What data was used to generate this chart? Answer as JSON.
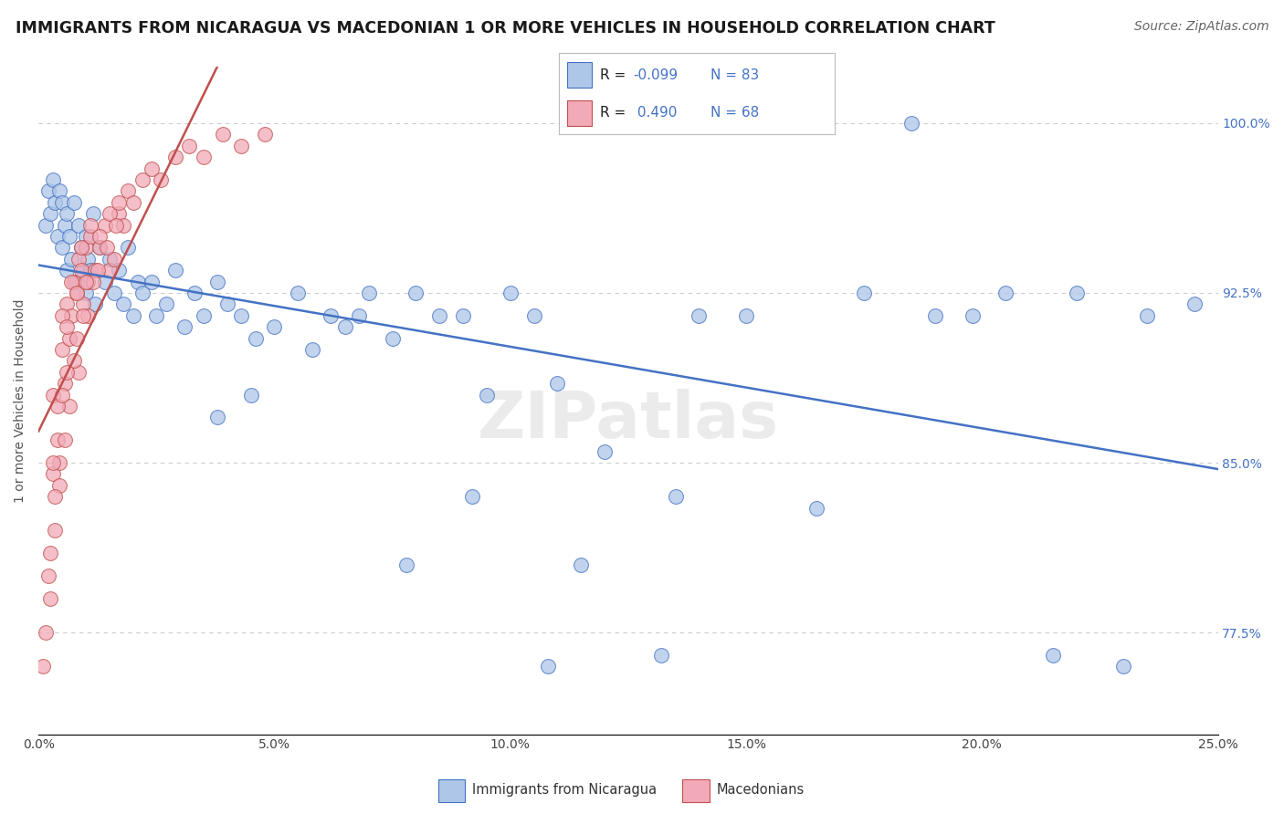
{
  "title": "IMMIGRANTS FROM NICARAGUA VS MACEDONIAN 1 OR MORE VEHICLES IN HOUSEHOLD CORRELATION CHART",
  "source": "Source: ZipAtlas.com",
  "ylabel": "1 or more Vehicles in Household",
  "legend_labels": [
    "Immigrants from Nicaragua",
    "Macedonians"
  ],
  "r_nicaragua": -0.099,
  "n_nicaragua": 83,
  "r_macedonian": 0.49,
  "n_macedonian": 68,
  "xlim": [
    0.0,
    25.0
  ],
  "ylim": [
    73.0,
    102.5
  ],
  "yticks": [
    77.5,
    85.0,
    92.5,
    100.0
  ],
  "xticks": [
    0.0,
    5.0,
    10.0,
    15.0,
    20.0,
    25.0
  ],
  "xtick_labels": [
    "0.0%",
    "5.0%",
    "10.0%",
    "15.0%",
    "20.0%",
    "25.0%"
  ],
  "ytick_labels": [
    "77.5%",
    "85.0%",
    "92.5%",
    "100.0%"
  ],
  "color_nicaragua": "#aec6e8",
  "color_macedonian": "#f2aab8",
  "line_color_nicaragua": "#4472c4",
  "line_color_macedonian": "#c0504d",
  "background_color": "#ffffff",
  "grid_color": "#cccccc",
  "title_fontsize": 12.5,
  "source_fontsize": 10,
  "axis_label_fontsize": 10,
  "tick_fontsize": 10,
  "nicaragua_x": [
    0.15,
    0.2,
    0.25,
    0.3,
    0.35,
    0.4,
    0.45,
    0.5,
    0.5,
    0.55,
    0.6,
    0.6,
    0.65,
    0.7,
    0.75,
    0.8,
    0.85,
    0.9,
    0.95,
    1.0,
    1.0,
    1.05,
    1.1,
    1.15,
    1.2,
    1.3,
    1.4,
    1.5,
    1.6,
    1.7,
    1.8,
    1.9,
    2.0,
    2.1,
    2.2,
    2.4,
    2.5,
    2.7,
    2.9,
    3.1,
    3.3,
    3.5,
    3.8,
    4.0,
    4.3,
    4.6,
    5.0,
    5.5,
    5.8,
    6.2,
    6.5,
    7.0,
    7.5,
    8.0,
    8.5,
    9.0,
    9.5,
    10.0,
    10.5,
    11.0,
    12.0,
    13.5,
    15.0,
    17.5,
    18.5,
    19.0,
    20.5,
    22.0,
    23.5,
    24.5,
    3.8,
    6.8,
    9.2,
    11.5,
    14.0,
    16.5,
    19.8,
    21.5,
    23.0,
    4.5,
    7.8,
    10.8,
    13.2
  ],
  "nicaragua_y": [
    95.5,
    97.0,
    96.0,
    97.5,
    96.5,
    95.0,
    97.0,
    94.5,
    96.5,
    95.5,
    93.5,
    96.0,
    95.0,
    94.0,
    96.5,
    93.0,
    95.5,
    94.5,
    93.5,
    92.5,
    95.0,
    94.0,
    93.5,
    96.0,
    92.0,
    94.5,
    93.0,
    94.0,
    92.5,
    93.5,
    92.0,
    94.5,
    91.5,
    93.0,
    92.5,
    93.0,
    91.5,
    92.0,
    93.5,
    91.0,
    92.5,
    91.5,
    93.0,
    92.0,
    91.5,
    90.5,
    91.0,
    92.5,
    90.0,
    91.5,
    91.0,
    92.5,
    90.5,
    92.5,
    91.5,
    91.5,
    88.0,
    92.5,
    91.5,
    88.5,
    85.5,
    83.5,
    91.5,
    92.5,
    100.0,
    91.5,
    92.5,
    92.5,
    91.5,
    92.0,
    87.0,
    91.5,
    83.5,
    80.5,
    91.5,
    83.0,
    91.5,
    76.5,
    76.0,
    88.0,
    80.5,
    76.0,
    76.5
  ],
  "macedonian_x": [
    0.1,
    0.15,
    0.2,
    0.25,
    0.3,
    0.35,
    0.4,
    0.45,
    0.5,
    0.55,
    0.6,
    0.65,
    0.7,
    0.75,
    0.8,
    0.85,
    0.9,
    0.95,
    1.0,
    1.05,
    1.1,
    1.2,
    1.3,
    1.4,
    1.5,
    1.6,
    1.7,
    1.8,
    1.9,
    2.0,
    2.2,
    2.4,
    2.6,
    2.9,
    3.2,
    3.5,
    3.9,
    4.3,
    4.8,
    0.3,
    0.5,
    0.7,
    0.9,
    1.1,
    1.3,
    1.5,
    1.7,
    0.25,
    0.45,
    0.65,
    0.85,
    1.05,
    1.25,
    1.45,
    1.65,
    0.35,
    0.55,
    0.75,
    0.95,
    1.15,
    0.4,
    0.6,
    0.8,
    0.5,
    0.3,
    0.6,
    0.8,
    1.0
  ],
  "macedonian_y": [
    76.0,
    77.5,
    80.0,
    79.0,
    84.5,
    82.0,
    86.0,
    84.0,
    90.0,
    88.5,
    92.0,
    90.5,
    91.5,
    93.0,
    92.5,
    94.0,
    93.5,
    92.0,
    94.5,
    93.0,
    95.0,
    93.5,
    94.5,
    95.5,
    93.5,
    94.0,
    96.0,
    95.5,
    97.0,
    96.5,
    97.5,
    98.0,
    97.5,
    98.5,
    99.0,
    98.5,
    99.5,
    99.0,
    99.5,
    88.0,
    91.5,
    93.0,
    94.5,
    95.5,
    95.0,
    96.0,
    96.5,
    81.0,
    85.0,
    87.5,
    89.0,
    91.5,
    93.5,
    94.5,
    95.5,
    83.5,
    86.0,
    89.5,
    91.5,
    93.0,
    87.5,
    89.0,
    90.5,
    88.0,
    85.0,
    91.0,
    92.5,
    93.0
  ]
}
